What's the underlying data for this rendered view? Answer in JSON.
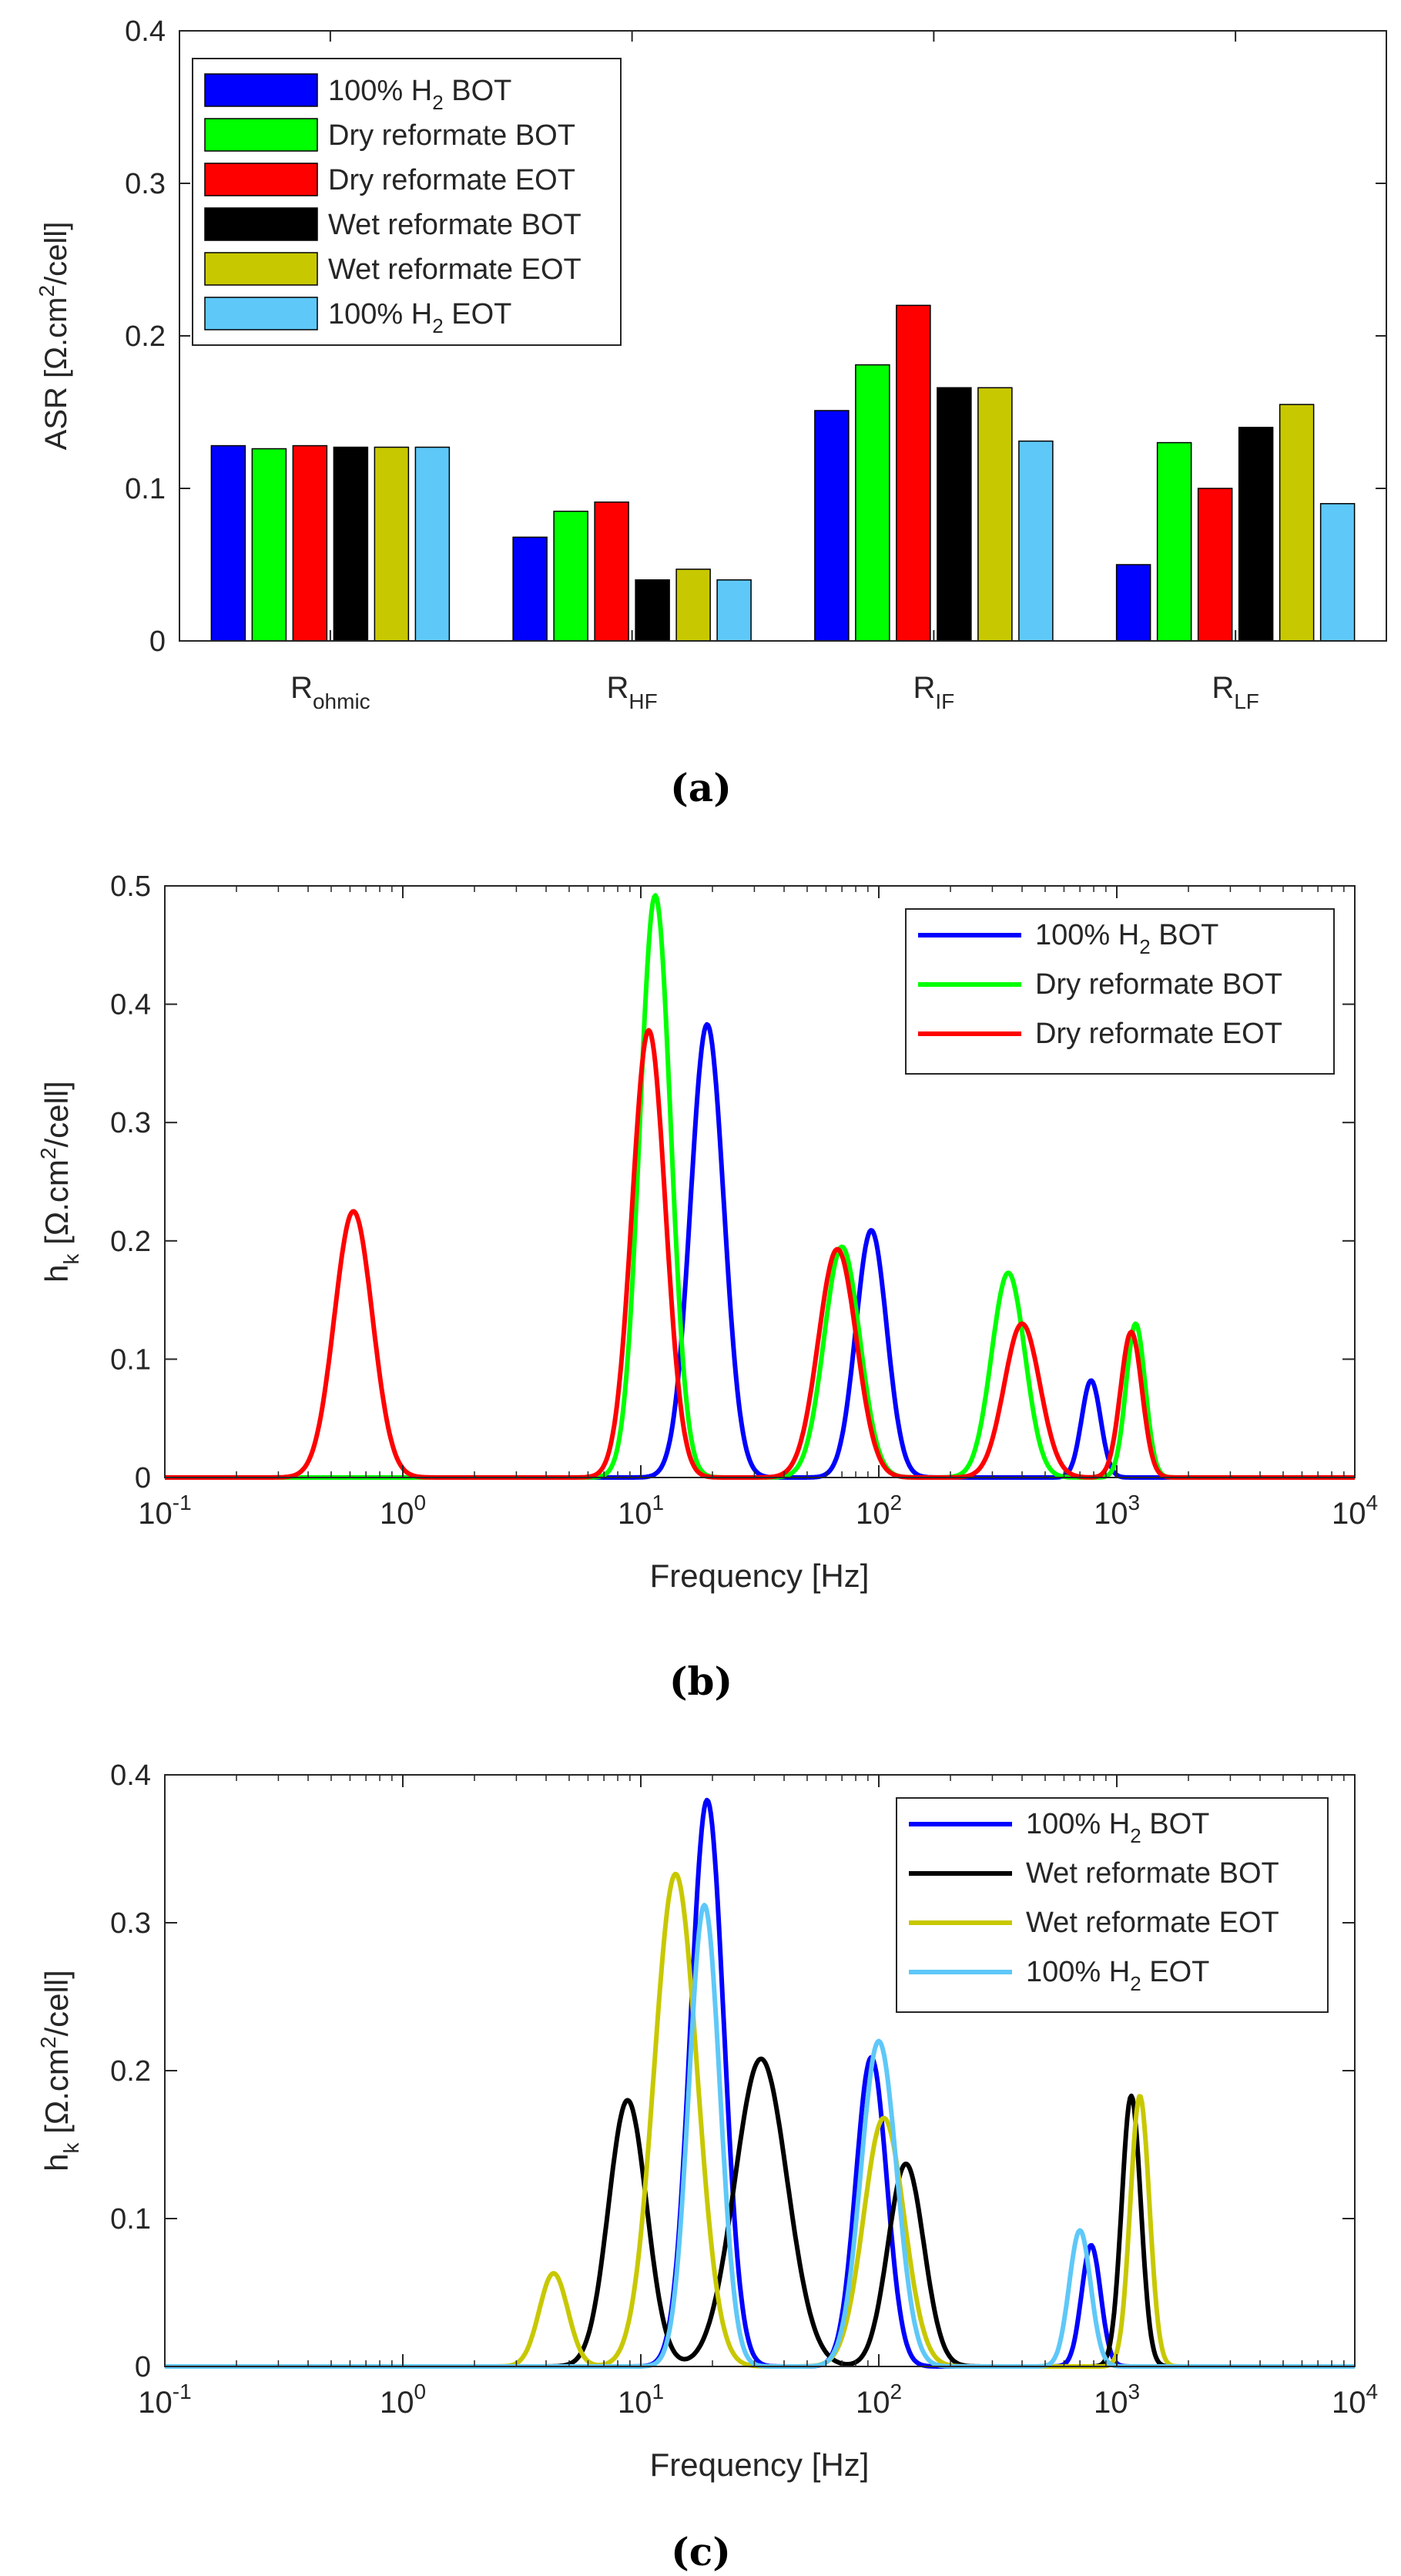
{
  "colors": {
    "h2_bot": "#0000ff",
    "dry_bot": "#00ff00",
    "dry_eot": "#ff0000",
    "wet_bot": "#000000",
    "wet_eot": "#c8c800",
    "h2_eot": "#5ec8f8"
  },
  "chart_data": [
    {
      "type": "bar",
      "panel": "a",
      "caption": "(a)",
      "ylabel": "ASR [Ω.cm²/cell]",
      "ylabel_parts": {
        "main": "ASR [Ω.cm",
        "sup": "2",
        "tail": "/cell]"
      },
      "ylim": [
        0,
        0.4
      ],
      "yticks": [
        "0",
        "0.1",
        "0.2",
        "0.3",
        "0.4"
      ],
      "ytick_values": [
        0,
        0.1,
        0.2,
        0.3,
        0.4
      ],
      "categories": [
        "R_ohmic",
        "R_HF",
        "R_IF",
        "R_LF"
      ],
      "category_labels": [
        {
          "main": "R",
          "sub": "ohmic"
        },
        {
          "main": "R",
          "sub": "HF"
        },
        {
          "main": "R",
          "sub": "IF"
        },
        {
          "main": "R",
          "sub": "LF"
        }
      ],
      "legend_position": "top-left",
      "series": [
        {
          "name": "100% H2 BOT",
          "label_main": "100% H",
          "label_sub": "2",
          "label_tail": " BOT",
          "color_key": "h2_bot",
          "values": [
            0.128,
            0.068,
            0.151,
            0.05
          ]
        },
        {
          "name": "Dry reformate BOT",
          "label_main": "Dry reformate BOT",
          "label_sub": "",
          "label_tail": "",
          "color_key": "dry_bot",
          "values": [
            0.126,
            0.085,
            0.181,
            0.13
          ]
        },
        {
          "name": "Dry reformate EOT",
          "label_main": "Dry reformate EOT",
          "label_sub": "",
          "label_tail": "",
          "color_key": "dry_eot",
          "values": [
            0.128,
            0.091,
            0.22,
            0.1
          ]
        },
        {
          "name": "Wet reformate BOT",
          "label_main": "Wet reformate BOT",
          "label_sub": "",
          "label_tail": "",
          "color_key": "wet_bot",
          "values": [
            0.127,
            0.04,
            0.166,
            0.14
          ]
        },
        {
          "name": "Wet reformate EOT",
          "label_main": "Wet reformate EOT",
          "label_sub": "",
          "label_tail": "",
          "color_key": "wet_eot",
          "values": [
            0.127,
            0.047,
            0.166,
            0.155
          ]
        },
        {
          "name": "100% H2 EOT",
          "label_main": "100% H",
          "label_sub": "2",
          "label_tail": " EOT",
          "color_key": "h2_eot",
          "values": [
            0.127,
            0.04,
            0.131,
            0.09
          ]
        }
      ]
    },
    {
      "type": "line",
      "panel": "b",
      "caption": "(b)",
      "xscale": "log",
      "xlim": [
        0.1,
        10000
      ],
      "ylim": [
        0,
        0.5
      ],
      "xlabel": "Frequency [Hz]",
      "ylabel": "h_k [Ω.cm²/cell]",
      "ylabel_parts": {
        "main": "h",
        "sub": "k",
        "mid": " [Ω.cm",
        "sup": "2",
        "tail": "/cell]"
      },
      "xticks": [
        {
          "base": "10",
          "exp": "-1"
        },
        {
          "base": "10",
          "exp": "0"
        },
        {
          "base": "10",
          "exp": "1"
        },
        {
          "base": "10",
          "exp": "2"
        },
        {
          "base": "10",
          "exp": "3"
        },
        {
          "base": "10",
          "exp": "4"
        }
      ],
      "yticks": [
        "0",
        "0.1",
        "0.2",
        "0.3",
        "0.4",
        "0.5"
      ],
      "ytick_values": [
        0,
        0.1,
        0.2,
        0.3,
        0.4,
        0.5
      ],
      "legend_position": "top-right",
      "series": [
        {
          "name": "100% H2 BOT",
          "label_main": "100% H",
          "label_sub": "2",
          "label_tail": " BOT",
          "color_key": "h2_bot",
          "peaks": [
            {
              "f": 19,
              "h": 0.383,
              "w": 0.07
            },
            {
              "f": 93,
              "h": 0.209,
              "w": 0.065
            },
            {
              "f": 780,
              "h": 0.082,
              "w": 0.04
            }
          ]
        },
        {
          "name": "Dry reformate BOT",
          "label_main": "Dry reformate BOT",
          "label_sub": "",
          "label_tail": "",
          "color_key": "dry_bot",
          "peaks": [
            {
              "f": 11.5,
              "h": 0.492,
              "w": 0.065
            },
            {
              "f": 70,
              "h": 0.195,
              "w": 0.075
            },
            {
              "f": 350,
              "h": 0.173,
              "w": 0.07
            },
            {
              "f": 1200,
              "h": 0.13,
              "w": 0.04
            }
          ]
        },
        {
          "name": "Dry reformate EOT",
          "label_main": "Dry reformate EOT",
          "label_sub": "",
          "label_tail": "",
          "color_key": "dry_eot",
          "peaks": [
            {
              "f": 0.62,
              "h": 0.225,
              "w": 0.08
            },
            {
              "f": 10.8,
              "h": 0.378,
              "w": 0.07
            },
            {
              "f": 67,
              "h": 0.193,
              "w": 0.08
            },
            {
              "f": 400,
              "h": 0.13,
              "w": 0.075
            },
            {
              "f": 1150,
              "h": 0.123,
              "w": 0.045
            }
          ]
        }
      ]
    },
    {
      "type": "line",
      "panel": "c",
      "caption": "(c)",
      "xscale": "log",
      "xlim": [
        0.1,
        10000
      ],
      "ylim": [
        0,
        0.4
      ],
      "xlabel": "Frequency [Hz]",
      "ylabel": "h_k [Ω.cm²/cell]",
      "ylabel_parts": {
        "main": "h",
        "sub": "k",
        "mid": " [Ω.cm",
        "sup": "2",
        "tail": "/cell]"
      },
      "xticks": [
        {
          "base": "10",
          "exp": "-1"
        },
        {
          "base": "10",
          "exp": "0"
        },
        {
          "base": "10",
          "exp": "1"
        },
        {
          "base": "10",
          "exp": "2"
        },
        {
          "base": "10",
          "exp": "3"
        },
        {
          "base": "10",
          "exp": "4"
        }
      ],
      "yticks": [
        "0",
        "0.1",
        "0.2",
        "0.3",
        "0.4"
      ],
      "ytick_values": [
        0,
        0.1,
        0.2,
        0.3,
        0.4
      ],
      "legend_position": "top-right",
      "series": [
        {
          "name": "100% H2 BOT",
          "label_main": "100% H",
          "label_sub": "2",
          "label_tail": " BOT",
          "color_key": "h2_bot",
          "peaks": [
            {
              "f": 19,
              "h": 0.383,
              "w": 0.07
            },
            {
              "f": 93,
              "h": 0.209,
              "w": 0.065
            },
            {
              "f": 780,
              "h": 0.082,
              "w": 0.04
            }
          ]
        },
        {
          "name": "Wet reformate BOT",
          "label_main": "Wet reformate BOT",
          "label_sub": "",
          "label_tail": "",
          "color_key": "wet_bot",
          "peaks": [
            {
              "f": 8.8,
              "h": 0.18,
              "w": 0.08
            },
            {
              "f": 32,
              "h": 0.208,
              "w": 0.11
            },
            {
              "f": 130,
              "h": 0.137,
              "w": 0.075
            },
            {
              "f": 1150,
              "h": 0.183,
              "w": 0.04
            }
          ]
        },
        {
          "name": "Wet reformate EOT",
          "label_main": "Wet reformate EOT",
          "label_sub": "",
          "label_tail": "",
          "color_key": "wet_eot",
          "peaks": [
            {
              "f": 4.3,
              "h": 0.063,
              "w": 0.06
            },
            {
              "f": 14,
              "h": 0.333,
              "w": 0.09
            },
            {
              "f": 105,
              "h": 0.168,
              "w": 0.085
            },
            {
              "f": 1250,
              "h": 0.183,
              "w": 0.04
            }
          ]
        },
        {
          "name": "100% H2 EOT",
          "label_main": "100% H",
          "label_sub": "2",
          "label_tail": " EOT",
          "color_key": "h2_eot",
          "peaks": [
            {
              "f": 18.5,
              "h": 0.312,
              "w": 0.065
            },
            {
              "f": 100,
              "h": 0.22,
              "w": 0.075
            },
            {
              "f": 700,
              "h": 0.092,
              "w": 0.045
            }
          ]
        }
      ]
    }
  ]
}
